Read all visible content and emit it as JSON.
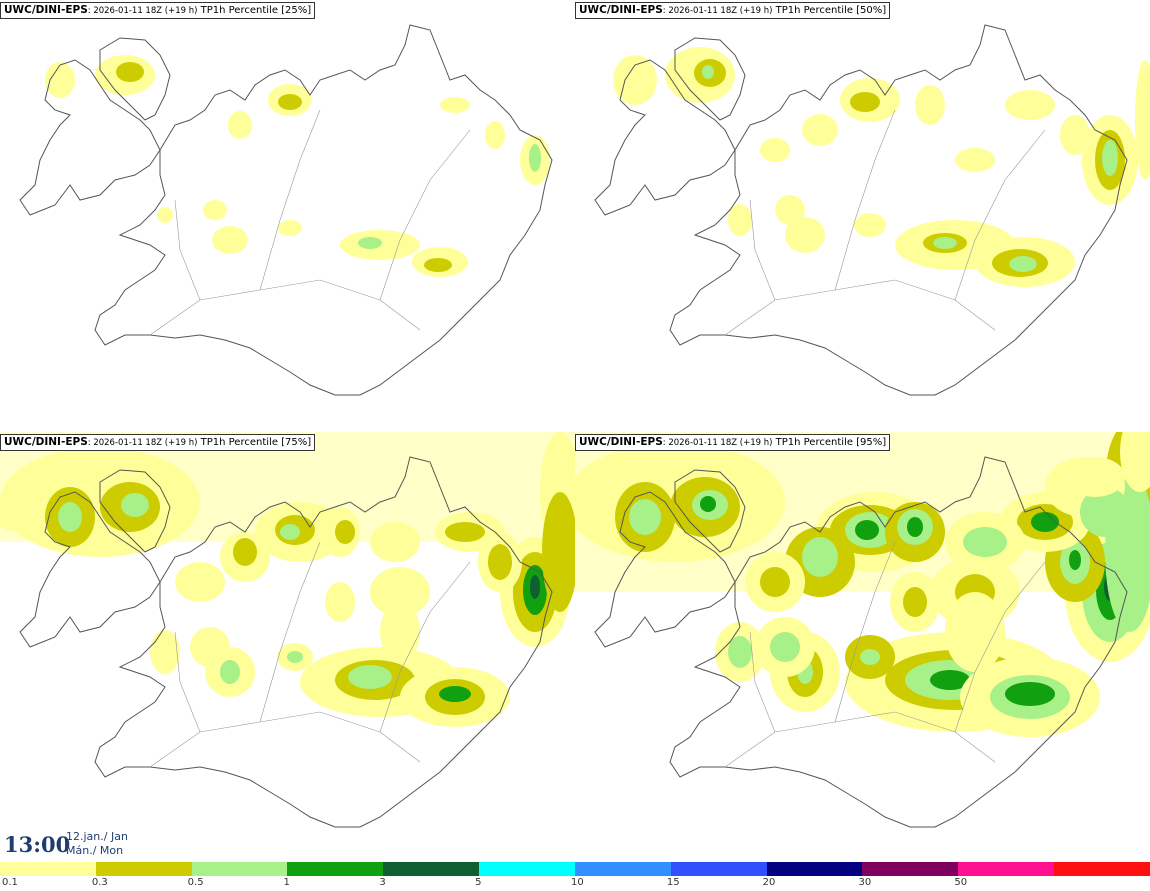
{
  "panels": [
    {
      "model": "UWC/DINI-EPS",
      "run": ": 2026-01-11 18Z (+19 h)",
      "field": " TP1h Percentile [25%]"
    },
    {
      "model": "UWC/DINI-EPS",
      "run": ": 2026-01-11 18Z (+19 h)",
      "field": " TP1h Percentile [50%]"
    },
    {
      "model": "UWC/DINI-EPS",
      "run": ": 2026-01-11 18Z (+19 h)",
      "field": " TP1h Percentile [75%]"
    },
    {
      "model": "UWC/DINI-EPS",
      "run": ": 2026-01-11 18Z (+19 h)",
      "field": " TP1h Percentile [95%]"
    }
  ],
  "valid_time": {
    "time": "13:00",
    "date_line1": "12.jan./ Jan",
    "date_line2": "Mán./ Mon"
  },
  "colorbar": {
    "colors": [
      "#ffff99",
      "#cccc00",
      "#a8f088",
      "#10a010",
      "#0e6030",
      "#00ffff",
      "#3090ff",
      "#3050ff",
      "#000080",
      "#800060",
      "#ff1090",
      "#ff1010"
    ],
    "labels": [
      "0.1",
      "0.3",
      "0.5",
      "1",
      "3",
      "5",
      "10",
      "15",
      "20",
      "30",
      "50"
    ]
  },
  "legend_colors": {
    "coast": "#555555",
    "light": "#ffff99",
    "mid": "#cccc00",
    "high": "#a8f088",
    "peak": "#10a010",
    "dark": "#0e6030"
  }
}
